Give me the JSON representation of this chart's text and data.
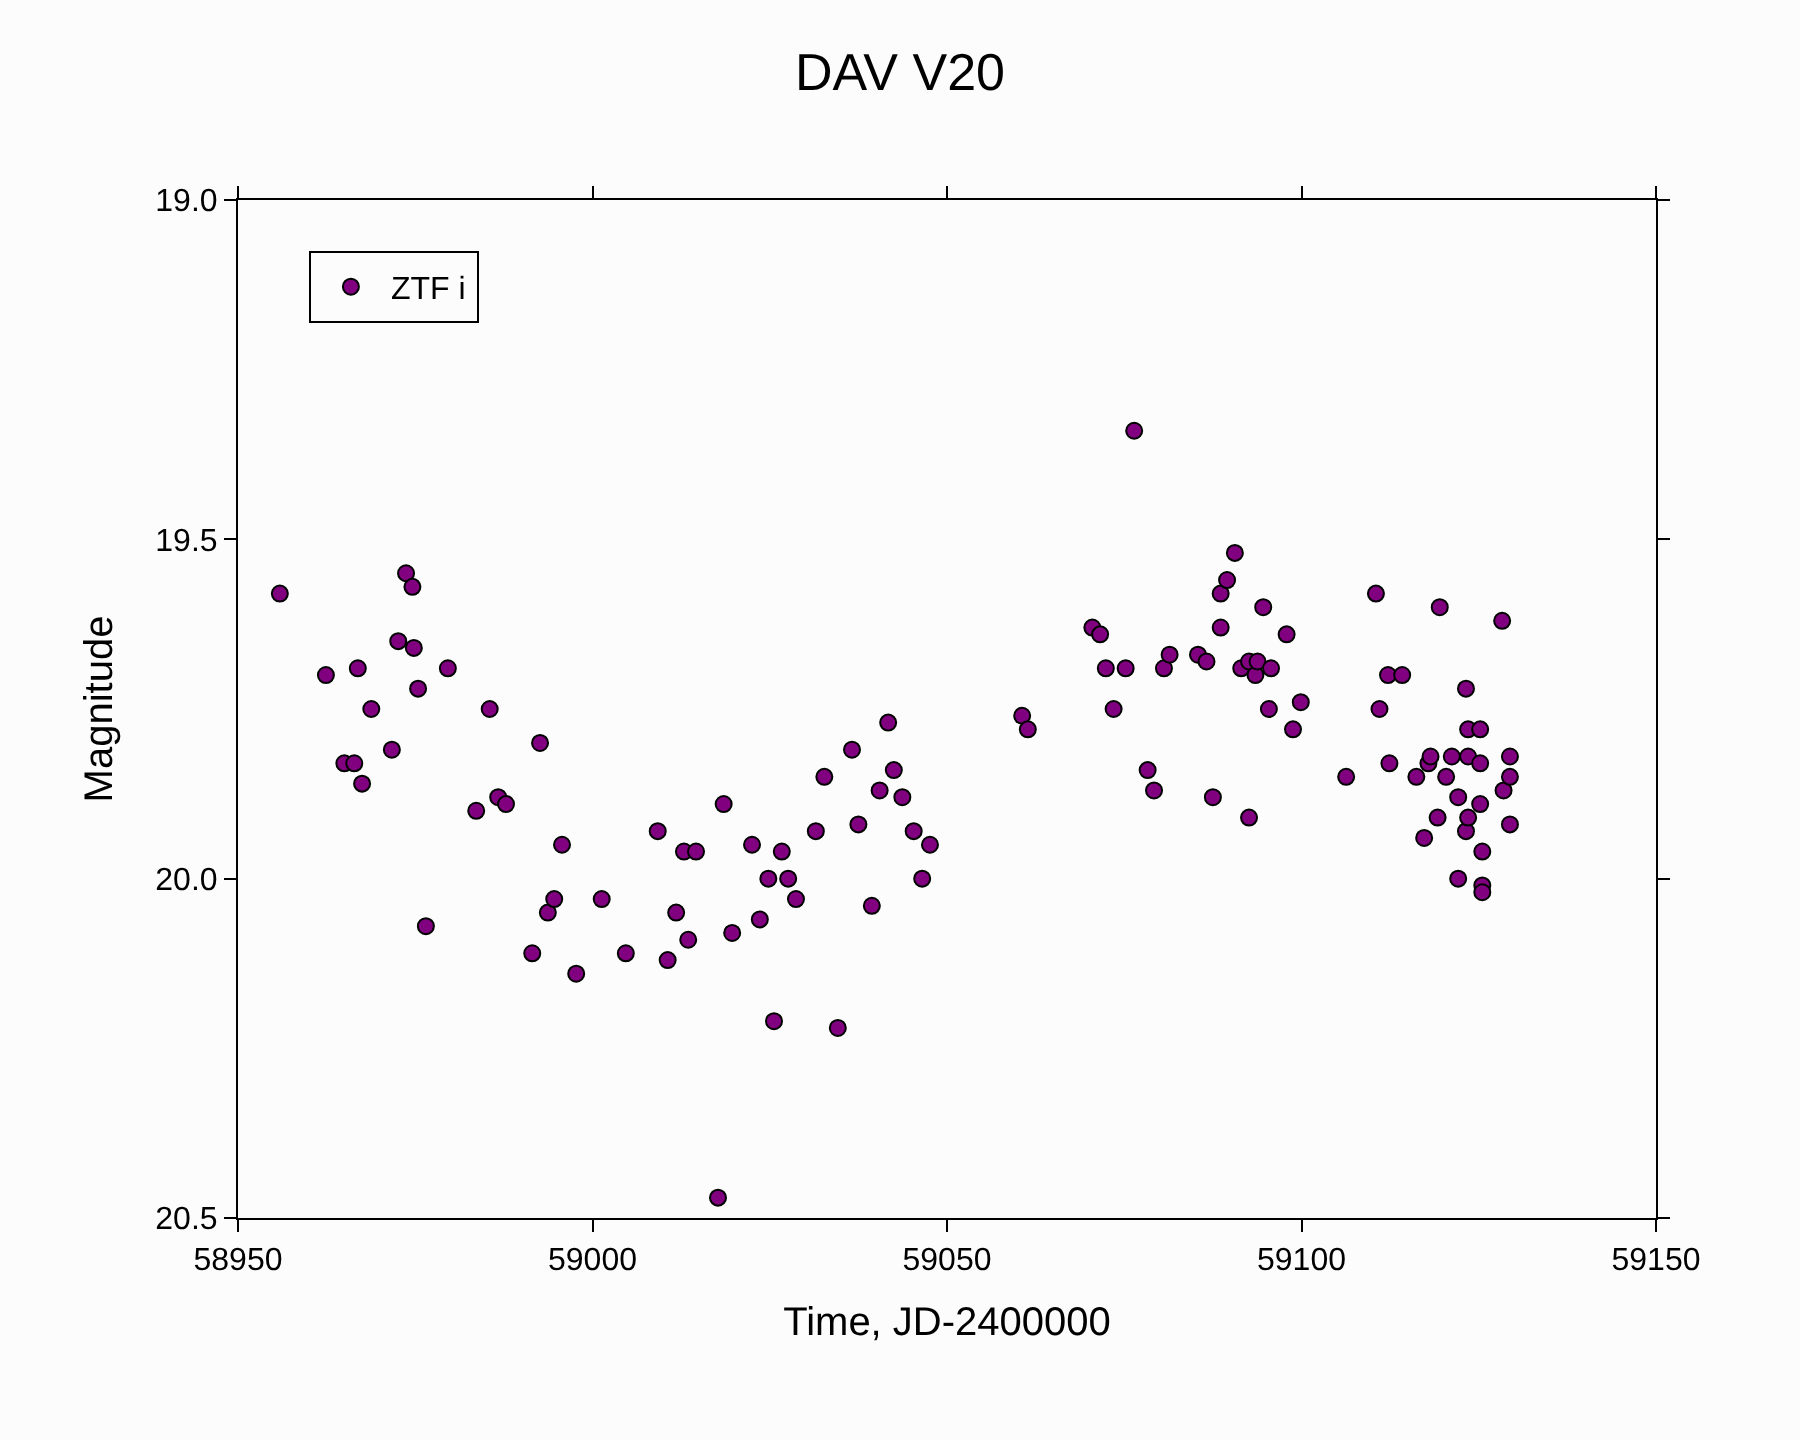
{
  "chart_data": {
    "type": "scatter",
    "title": "DAV V20",
    "xlabel": "Time, JD-2400000",
    "ylabel": "Magnitude",
    "xlim": [
      58950,
      59150
    ],
    "xticks": [
      58950,
      59000,
      59050,
      59100,
      59150
    ],
    "ylim": [
      20.5,
      19.0
    ],
    "yticks": [
      {
        "value": 19.0,
        "label": "19.0"
      },
      {
        "value": 19.5,
        "label": "19.5"
      },
      {
        "value": 20.0,
        "label": "20.0"
      },
      {
        "value": 20.5,
        "label": "20.5"
      }
    ],
    "legend": "top left",
    "marker": "circle",
    "series": [
      {
        "name": "ZTF i",
        "color": "#800080",
        "x": [
          58955.9,
          58962.4,
          58966.9,
          58968.8,
          58965.0,
          58966.4,
          58967.5,
          58971.7,
          58973.7,
          58974.6,
          58972.6,
          58974.8,
          58975.4,
          58976.5,
          58979.6,
          58985.5,
          58983.6,
          58986.7,
          58987.8,
          58992.6,
          58995.7,
          58993.7,
          58994.6,
          58991.5,
          58997.7,
          59001.3,
          59004.7,
          59009.2,
          59010.6,
          59011.8,
          59012.9,
          59014.6,
          59013.5,
          59017.7,
          59018.5,
          59019.7,
          59022.5,
          59023.6,
          59024.8,
          59025.6,
          59026.7,
          59027.6,
          59028.7,
          59031.5,
          59032.7,
          59034.6,
          59036.6,
          59037.5,
          59039.4,
          59040.5,
          59041.7,
          59042.5,
          59043.7,
          59045.3,
          59046.5,
          59047.6,
          59060.6,
          59061.4,
          59076.4,
          59070.5,
          59071.6,
          59072.4,
          59073.5,
          59075.2,
          59078.3,
          59079.2,
          59080.6,
          59081.4,
          59085.4,
          59086.6,
          59087.5,
          59088.6,
          59088.6,
          59089.5,
          59090.6,
          59091.5,
          59092.6,
          59093.5,
          59093.8,
          59095.7,
          59092.6,
          59094.6,
          59095.4,
          59097.9,
          59098.8,
          59099.9,
          59106.3,
          59110.5,
          59111.0,
          59112.2,
          59112.4,
          59114.2,
          59116.2,
          59117.3,
          59117.9,
          59118.2,
          59119.2,
          59119.5,
          59120.4,
          59121.2,
          59122.1,
          59122.1,
          59123.2,
          59123.5,
          59123.2,
          59123.5,
          59123.5,
          59125.2,
          59125.2,
          59125.5,
          59125.5,
          59125.5,
          59125.2,
          59128.3,
          59128.5,
          59129.4,
          59129.4,
          59129.4
        ],
        "values": [
          19.58,
          19.7,
          19.69,
          19.75,
          19.83,
          19.83,
          19.86,
          19.81,
          19.55,
          19.57,
          19.65,
          19.66,
          19.72,
          20.07,
          19.69,
          19.75,
          19.9,
          19.88,
          19.89,
          19.8,
          19.95,
          20.05,
          20.03,
          20.11,
          20.14,
          20.03,
          20.11,
          19.93,
          20.12,
          20.05,
          19.96,
          19.96,
          20.09,
          20.47,
          19.89,
          20.08,
          19.95,
          20.06,
          20.0,
          20.21,
          19.96,
          20.0,
          20.03,
          19.93,
          19.85,
          20.22,
          19.81,
          19.92,
          20.04,
          19.87,
          19.77,
          19.84,
          19.88,
          19.93,
          20.0,
          19.95,
          19.76,
          19.78,
          19.34,
          19.63,
          19.64,
          19.69,
          19.75,
          19.69,
          19.84,
          19.87,
          19.69,
          19.67,
          19.67,
          19.68,
          19.88,
          19.63,
          19.58,
          19.56,
          19.52,
          19.69,
          19.68,
          19.7,
          19.68,
          19.69,
          19.91,
          19.6,
          19.75,
          19.64,
          19.78,
          19.74,
          19.85,
          19.58,
          19.75,
          19.7,
          19.83,
          19.7,
          19.85,
          19.94,
          19.83,
          19.82,
          19.91,
          19.6,
          19.85,
          19.82,
          19.88,
          20.0,
          19.72,
          19.78,
          19.93,
          19.91,
          19.82,
          19.78,
          19.83,
          19.96,
          20.01,
          20.02,
          19.89,
          19.62,
          19.87,
          19.82,
          19.85,
          19.92
        ]
      }
    ]
  }
}
